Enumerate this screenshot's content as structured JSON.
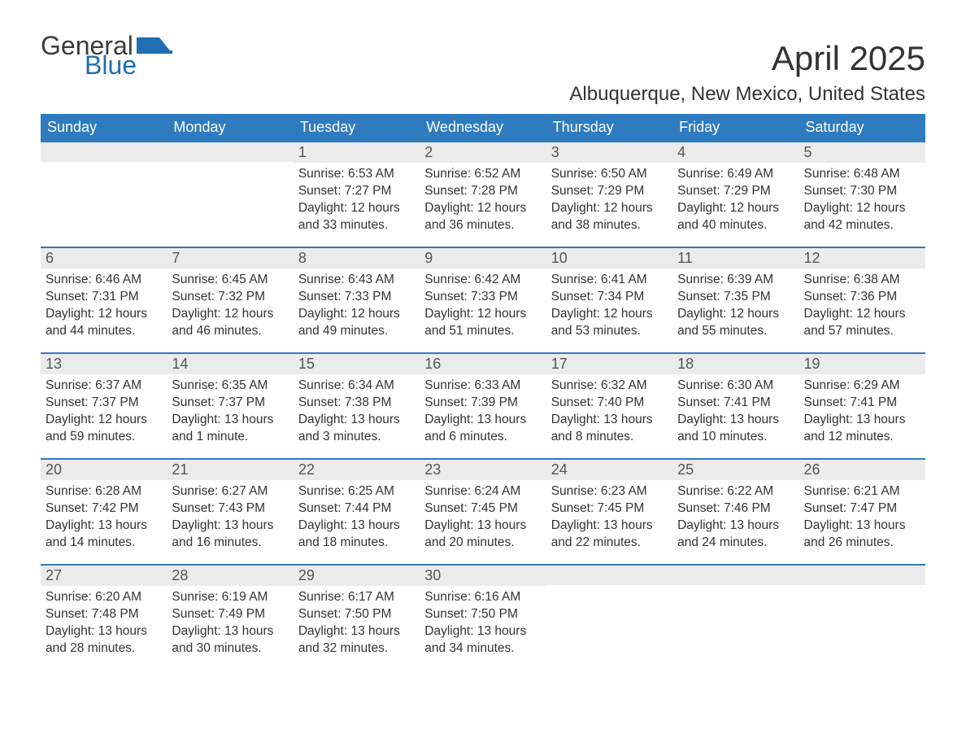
{
  "logo": {
    "text1": "General",
    "text2": "Blue",
    "icon_color": "#1f6fb2"
  },
  "title": "April 2025",
  "location": "Albuquerque, New Mexico, United States",
  "colors": {
    "header_bg": "#2f7bbf",
    "header_text": "#ffffff",
    "band_bg": "#ebebeb",
    "band_border": "#2f7bbf",
    "body_bg": "#ffffff",
    "text": "#333333"
  },
  "day_headers": [
    "Sunday",
    "Monday",
    "Tuesday",
    "Wednesday",
    "Thursday",
    "Friday",
    "Saturday"
  ],
  "weeks": [
    [
      null,
      null,
      {
        "n": "1",
        "sr": "6:53 AM",
        "ss": "7:27 PM",
        "dl": "12 hours and 33 minutes."
      },
      {
        "n": "2",
        "sr": "6:52 AM",
        "ss": "7:28 PM",
        "dl": "12 hours and 36 minutes."
      },
      {
        "n": "3",
        "sr": "6:50 AM",
        "ss": "7:29 PM",
        "dl": "12 hours and 38 minutes."
      },
      {
        "n": "4",
        "sr": "6:49 AM",
        "ss": "7:29 PM",
        "dl": "12 hours and 40 minutes."
      },
      {
        "n": "5",
        "sr": "6:48 AM",
        "ss": "7:30 PM",
        "dl": "12 hours and 42 minutes."
      }
    ],
    [
      {
        "n": "6",
        "sr": "6:46 AM",
        "ss": "7:31 PM",
        "dl": "12 hours and 44 minutes."
      },
      {
        "n": "7",
        "sr": "6:45 AM",
        "ss": "7:32 PM",
        "dl": "12 hours and 46 minutes."
      },
      {
        "n": "8",
        "sr": "6:43 AM",
        "ss": "7:33 PM",
        "dl": "12 hours and 49 minutes."
      },
      {
        "n": "9",
        "sr": "6:42 AM",
        "ss": "7:33 PM",
        "dl": "12 hours and 51 minutes."
      },
      {
        "n": "10",
        "sr": "6:41 AM",
        "ss": "7:34 PM",
        "dl": "12 hours and 53 minutes."
      },
      {
        "n": "11",
        "sr": "6:39 AM",
        "ss": "7:35 PM",
        "dl": "12 hours and 55 minutes."
      },
      {
        "n": "12",
        "sr": "6:38 AM",
        "ss": "7:36 PM",
        "dl": "12 hours and 57 minutes."
      }
    ],
    [
      {
        "n": "13",
        "sr": "6:37 AM",
        "ss": "7:37 PM",
        "dl": "12 hours and 59 minutes."
      },
      {
        "n": "14",
        "sr": "6:35 AM",
        "ss": "7:37 PM",
        "dl": "13 hours and 1 minute."
      },
      {
        "n": "15",
        "sr": "6:34 AM",
        "ss": "7:38 PM",
        "dl": "13 hours and 3 minutes."
      },
      {
        "n": "16",
        "sr": "6:33 AM",
        "ss": "7:39 PM",
        "dl": "13 hours and 6 minutes."
      },
      {
        "n": "17",
        "sr": "6:32 AM",
        "ss": "7:40 PM",
        "dl": "13 hours and 8 minutes."
      },
      {
        "n": "18",
        "sr": "6:30 AM",
        "ss": "7:41 PM",
        "dl": "13 hours and 10 minutes."
      },
      {
        "n": "19",
        "sr": "6:29 AM",
        "ss": "7:41 PM",
        "dl": "13 hours and 12 minutes."
      }
    ],
    [
      {
        "n": "20",
        "sr": "6:28 AM",
        "ss": "7:42 PM",
        "dl": "13 hours and 14 minutes."
      },
      {
        "n": "21",
        "sr": "6:27 AM",
        "ss": "7:43 PM",
        "dl": "13 hours and 16 minutes."
      },
      {
        "n": "22",
        "sr": "6:25 AM",
        "ss": "7:44 PM",
        "dl": "13 hours and 18 minutes."
      },
      {
        "n": "23",
        "sr": "6:24 AM",
        "ss": "7:45 PM",
        "dl": "13 hours and 20 minutes."
      },
      {
        "n": "24",
        "sr": "6:23 AM",
        "ss": "7:45 PM",
        "dl": "13 hours and 22 minutes."
      },
      {
        "n": "25",
        "sr": "6:22 AM",
        "ss": "7:46 PM",
        "dl": "13 hours and 24 minutes."
      },
      {
        "n": "26",
        "sr": "6:21 AM",
        "ss": "7:47 PM",
        "dl": "13 hours and 26 minutes."
      }
    ],
    [
      {
        "n": "27",
        "sr": "6:20 AM",
        "ss": "7:48 PM",
        "dl": "13 hours and 28 minutes."
      },
      {
        "n": "28",
        "sr": "6:19 AM",
        "ss": "7:49 PM",
        "dl": "13 hours and 30 minutes."
      },
      {
        "n": "29",
        "sr": "6:17 AM",
        "ss": "7:50 PM",
        "dl": "13 hours and 32 minutes."
      },
      {
        "n": "30",
        "sr": "6:16 AM",
        "ss": "7:50 PM",
        "dl": "13 hours and 34 minutes."
      },
      null,
      null,
      null
    ]
  ],
  "labels": {
    "sunrise": "Sunrise: ",
    "sunset": "Sunset: ",
    "daylight": "Daylight: "
  }
}
